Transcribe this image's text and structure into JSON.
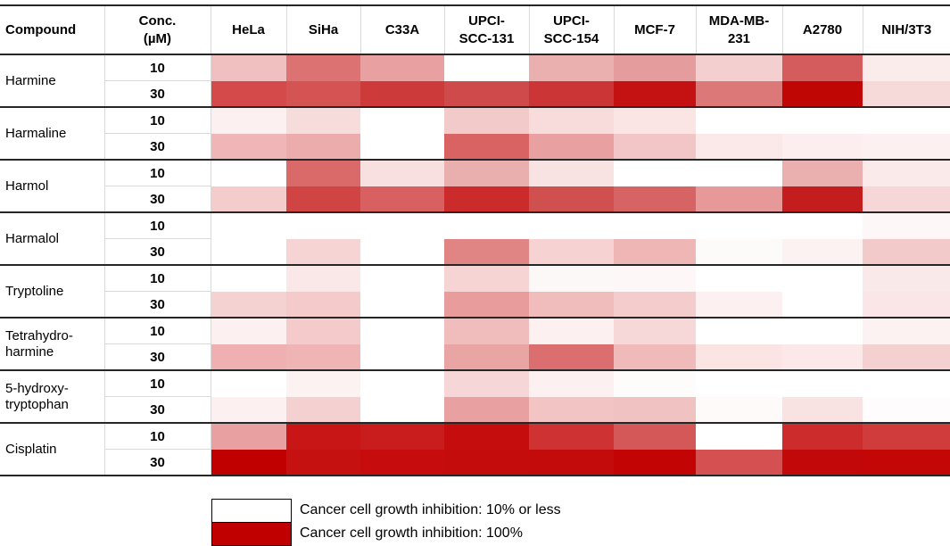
{
  "table": {
    "header": {
      "compound": "Compound",
      "conc": "Conc.\n(µM)"
    },
    "compound_labels": [
      "Harmine",
      "Harmaline",
      "Harmol",
      "Harmalol",
      "Tryptoline",
      "Tetrahydro-\nharmine",
      "5-hydroxy-\ntryptophan",
      "Cisplatin"
    ],
    "cell_line_labels": [
      "HeLa",
      "SiHa",
      "C33A",
      "UPCI-\nSCC-131",
      "UPCI-\nSCC-154",
      "MCF-7",
      "MDA-MB-\n231",
      "A2780",
      "NIH/3T3"
    ]
  },
  "chart_data": {
    "type": "heatmap",
    "title": "",
    "columns": [
      "HeLa",
      "SiHa",
      "C33A",
      "UPCI-SCC-131",
      "UPCI-SCC-154",
      "MCF-7",
      "MDA-MB-231",
      "A2780",
      "NIH/3T3"
    ],
    "color_scale": {
      "min_color": "#ffffff",
      "min_label": "10% or less",
      "max_color": "#c00000",
      "max_label": "100%"
    },
    "rows": [
      {
        "compound": "Harmine",
        "conc_uM": 10,
        "colors": [
          "#f0c0c0",
          "#dc7272",
          "#e8a0a0",
          "#ffffff",
          "#eab0b0",
          "#e49c9c",
          "#f3cfcf",
          "#d45c5c",
          "#fbecec"
        ],
        "inhibition_pct_est": [
          30,
          60,
          45,
          10,
          40,
          45,
          25,
          70,
          15
        ]
      },
      {
        "compound": "Harmine",
        "conc_uM": 30,
        "colors": [
          "#d44a4a",
          "#d45454",
          "#cc3a3a",
          "#cf4a4a",
          "#cc3535",
          "#c41212",
          "#dc7878",
          "#c00505",
          "#f6dada"
        ],
        "inhibition_pct_est": [
          75,
          70,
          80,
          75,
          80,
          95,
          60,
          100,
          25
        ]
      },
      {
        "compound": "Harmaline",
        "conc_uM": 10,
        "colors": [
          "#fdf0f0",
          "#f7dcdc",
          "#ffffff",
          "#f2caca",
          "#f8dcdc",
          "#fae4e4",
          "#ffffff",
          "#ffffff",
          "#ffffff"
        ],
        "inhibition_pct_est": [
          15,
          20,
          10,
          30,
          20,
          20,
          10,
          10,
          10
        ]
      },
      {
        "compound": "Harmaline",
        "conc_uM": 30,
        "colors": [
          "#eeb6b6",
          "#ecacac",
          "#ffffff",
          "#d96262",
          "#e8a0a0",
          "#f2c6c6",
          "#fbe8e8",
          "#fceeee",
          "#fdf0f0"
        ],
        "inhibition_pct_est": [
          35,
          40,
          10,
          65,
          45,
          30,
          18,
          15,
          15
        ]
      },
      {
        "compound": "Harmol",
        "conc_uM": 10,
        "colors": [
          "#ffffff",
          "#da6a6a",
          "#f8e0e0",
          "#e9aeae",
          "#f8e2e2",
          "#ffffff",
          "#ffffff",
          "#eab0b0",
          "#fbeaea"
        ],
        "inhibition_pct_est": [
          10,
          60,
          20,
          40,
          20,
          10,
          10,
          40,
          15
        ]
      },
      {
        "compound": "Harmol",
        "conc_uM": 30,
        "colors": [
          "#f4cccc",
          "#d14444",
          "#d96060",
          "#cc2b2b",
          "#d05050",
          "#d66464",
          "#e79898",
          "#c41d1d",
          "#f6d6d6"
        ],
        "inhibition_pct_est": [
          30,
          75,
          65,
          85,
          70,
          65,
          45,
          90,
          25
        ]
      },
      {
        "compound": "Harmalol",
        "conc_uM": 10,
        "colors": [
          "#ffffff",
          "#ffffff",
          "#ffffff",
          "#ffffff",
          "#ffffff",
          "#ffffff",
          "#ffffff",
          "#ffffff",
          "#fdf7f7"
        ],
        "inhibition_pct_est": [
          10,
          10,
          10,
          10,
          10,
          10,
          10,
          10,
          12
        ]
      },
      {
        "compound": "Harmalol",
        "conc_uM": 30,
        "colors": [
          "#ffffff",
          "#f6d4d4",
          "#ffffff",
          "#e08484",
          "#f6d2d2",
          "#efb6b6",
          "#fdfafa",
          "#fcf2f2",
          "#f3caca"
        ],
        "inhibition_pct_est": [
          10,
          25,
          10,
          55,
          25,
          35,
          10,
          15,
          30
        ]
      },
      {
        "compound": "Tryptoline",
        "conc_uM": 10,
        "colors": [
          "#ffffff",
          "#fae8e8",
          "#ffffff",
          "#f6d4d4",
          "#fdf8f8",
          "#fdf7f7",
          "#ffffff",
          "#ffffff",
          "#fae9e9"
        ],
        "inhibition_pct_est": [
          10,
          18,
          10,
          25,
          12,
          12,
          10,
          10,
          17
        ]
      },
      {
        "compound": "Tryptoline",
        "conc_uM": 30,
        "colors": [
          "#f5d2d2",
          "#f4caca",
          "#ffffff",
          "#e89c9c",
          "#f0bcbc",
          "#f4cccc",
          "#fcf0f0",
          "#ffffff",
          "#fae6e6"
        ],
        "inhibition_pct_est": [
          25,
          30,
          10,
          45,
          35,
          30,
          15,
          10,
          20
        ]
      },
      {
        "compound": "Tetrahydro-harmine",
        "conc_uM": 10,
        "colors": [
          "#fdf0f0",
          "#f4caca",
          "#ffffff",
          "#f0bcbc",
          "#fdf0f0",
          "#f6d8d8",
          "#ffffff",
          "#ffffff",
          "#fdf2f2"
        ],
        "inhibition_pct_est": [
          15,
          30,
          10,
          35,
          15,
          25,
          10,
          10,
          15
        ]
      },
      {
        "compound": "Tetrahydro-harmine",
        "conc_uM": 30,
        "colors": [
          "#eeb0b0",
          "#efb4b4",
          "#ffffff",
          "#e9a4a4",
          "#db6e6e",
          "#f0baba",
          "#fae4e4",
          "#fbe9e9",
          "#f5d0d0"
        ],
        "inhibition_pct_est": [
          40,
          37,
          10,
          42,
          60,
          35,
          20,
          17,
          27
        ]
      },
      {
        "compound": "5-hydroxy-tryptophan",
        "conc_uM": 10,
        "colors": [
          "#ffffff",
          "#fdf2f2",
          "#ffffff",
          "#f6d6d6",
          "#fcf0f0",
          "#fefbfb",
          "#ffffff",
          "#ffffff",
          "#ffffff"
        ],
        "inhibition_pct_est": [
          10,
          14,
          10,
          25,
          15,
          11,
          10,
          10,
          10
        ]
      },
      {
        "compound": "5-hydroxy-tryptophan",
        "conc_uM": 30,
        "colors": [
          "#fdf0f0",
          "#f5d0d0",
          "#ffffff",
          "#e9a0a0",
          "#f2c4c4",
          "#f1c2c2",
          "#fefafa",
          "#f9e2e2",
          "#fefcfc"
        ],
        "inhibition_pct_est": [
          15,
          27,
          10,
          45,
          30,
          30,
          11,
          20,
          11
        ]
      },
      {
        "compound": "Cisplatin",
        "conc_uM": 10,
        "colors": [
          "#e9a0a0",
          "#c81616",
          "#c91d1d",
          "#c60d0d",
          "#cf3232",
          "#d45858",
          "#ffffff",
          "#cd2c2c",
          "#d03c3c"
        ],
        "inhibition_pct_est": [
          45,
          92,
          90,
          95,
          82,
          70,
          10,
          84,
          79
        ]
      },
      {
        "compound": "Cisplatin",
        "conc_uM": 30,
        "colors": [
          "#c00000",
          "#c61111",
          "#c60c0c",
          "#c50c0c",
          "#c40b0b",
          "#c20404",
          "#d55050",
          "#c20808",
          "#c30707"
        ],
        "inhibition_pct_est": [
          100,
          95,
          96,
          96,
          96,
          99,
          72,
          97,
          98
        ]
      }
    ]
  },
  "legend": {
    "items": [
      {
        "swatch": "#ffffff",
        "label": "Cancer cell growth inhibition: 10% or less"
      },
      {
        "swatch": "#c00000",
        "label": "Cancer cell growth inhibition: 100%"
      }
    ]
  }
}
